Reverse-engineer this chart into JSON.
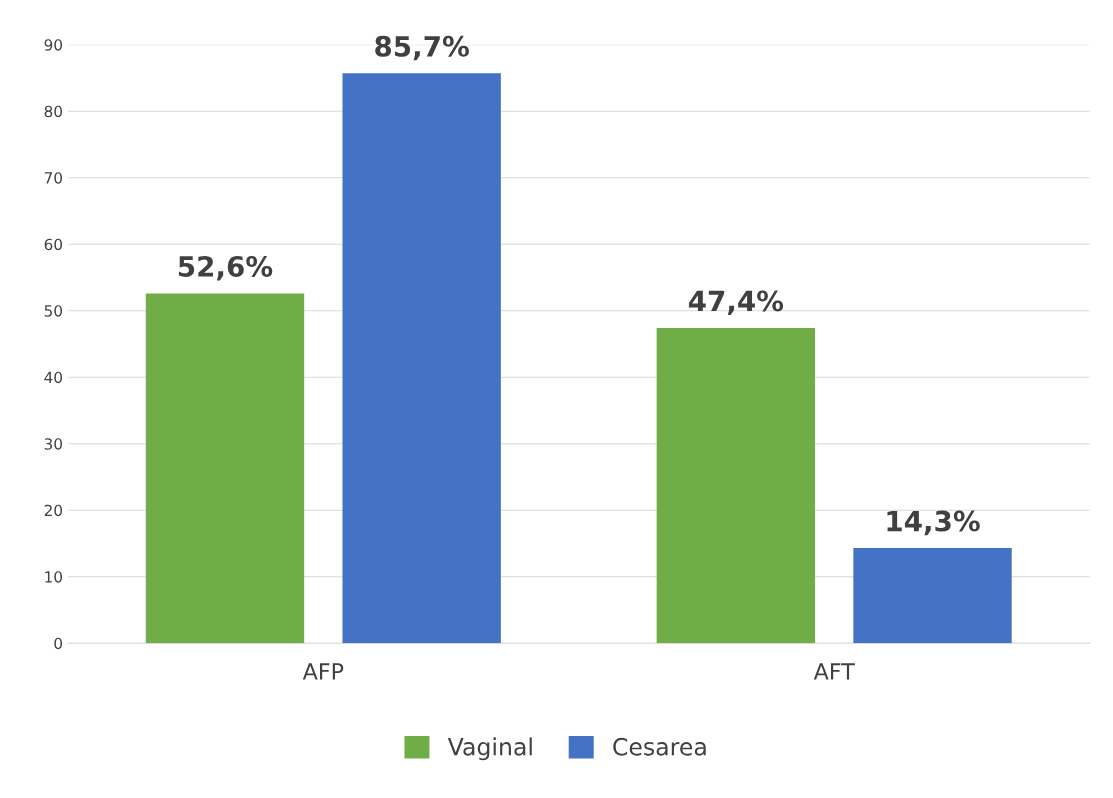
{
  "chart_data": {
    "type": "bar",
    "categories": [
      "AFP",
      "AFT"
    ],
    "series": [
      {
        "name": "Vaginal",
        "color": "#70ad47",
        "values": [
          52.6,
          47.4
        ],
        "value_labels": [
          "52,6%",
          "47,4%"
        ]
      },
      {
        "name": "Cesarea",
        "color": "#4472c4",
        "values": [
          85.7,
          14.3
        ],
        "value_labels": [
          "85,7%",
          "14,3%"
        ]
      }
    ],
    "ylim": [
      0,
      90
    ],
    "yticks": [
      0,
      10,
      20,
      30,
      40,
      50,
      60,
      70,
      80,
      90
    ],
    "grid": "y",
    "legend": "bottom"
  }
}
